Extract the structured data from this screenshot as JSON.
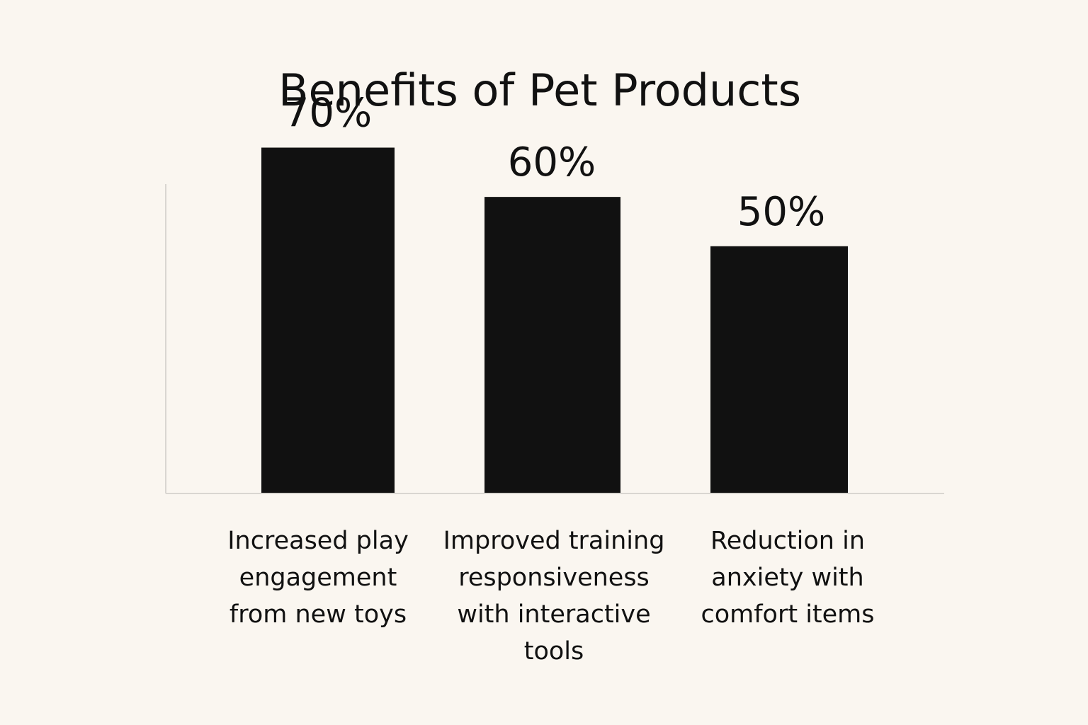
{
  "chart_data": {
    "type": "bar",
    "title": "Benefits of Pet Products",
    "categories": [
      "Increased play engagement from new toys",
      "Improved training responsiveness with interactive tools",
      "Reduction in anxiety with comfort items"
    ],
    "category_lines": [
      [
        "Increased play",
        "engagement",
        "from new toys"
      ],
      [
        "Improved training",
        "responsiveness",
        "with interactive",
        "tools"
      ],
      [
        "Reduction in",
        "anxiety with",
        "comfort items"
      ]
    ],
    "values": [
      70,
      60,
      50
    ],
    "value_labels": [
      "70%",
      "60%",
      "50%"
    ],
    "xlabel": "",
    "ylabel": "",
    "ylim": [
      0,
      84
    ],
    "grid": false,
    "legend": "none",
    "colors": {
      "bar": "#111111",
      "background": "#FAF6F0",
      "axis": "#D9D6D1",
      "text": "#111111"
    }
  }
}
